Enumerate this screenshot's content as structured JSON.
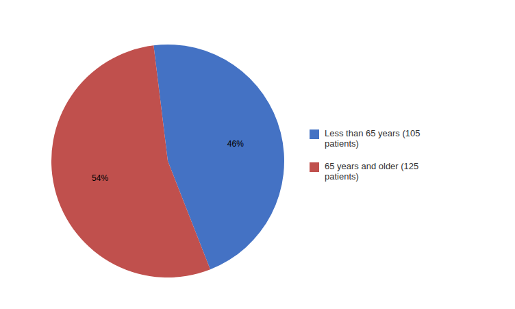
{
  "chart_data": {
    "type": "pie",
    "categories": [
      "Less than 65 years (105\npatients)",
      "65 years and older (125\npatients)"
    ],
    "values": [
      46,
      54
    ],
    "value_labels": [
      "46%",
      "54%"
    ],
    "colors": [
      "#4472C4",
      "#C0504D"
    ],
    "data_labels": true,
    "legend": "right"
  }
}
